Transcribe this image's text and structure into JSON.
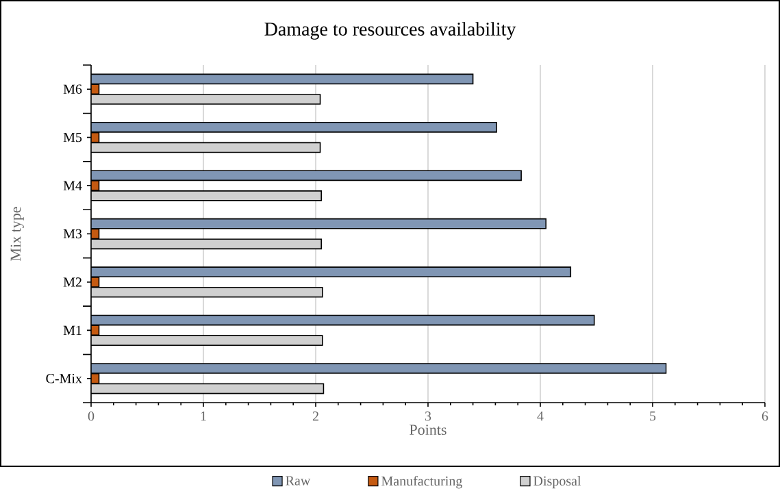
{
  "chart_data": {
    "type": "bar",
    "orientation": "horizontal",
    "title": "Damage to resources availability",
    "xlabel": "Points",
    "ylabel": "Mix type",
    "categories": [
      "M6",
      "M5",
      "M4",
      "M3",
      "M2",
      "M1",
      "C-Mix"
    ],
    "series": [
      {
        "name": "Raw",
        "color": "#8096b4",
        "values": [
          3.4,
          3.61,
          3.83,
          4.05,
          4.27,
          4.48,
          5.12
        ]
      },
      {
        "name": "Manufacturing",
        "color": "#c55a11",
        "values": [
          0.07,
          0.07,
          0.07,
          0.07,
          0.07,
          0.07,
          0.07
        ]
      },
      {
        "name": "Disposal",
        "color": "#d0d0d0",
        "values": [
          2.04,
          2.04,
          2.05,
          2.05,
          2.06,
          2.06,
          2.07
        ]
      }
    ],
    "xlim": [
      0,
      6
    ],
    "xticks": [
      0,
      1,
      2,
      3,
      4,
      5,
      6
    ],
    "grid": "x",
    "legend": "bottom"
  }
}
